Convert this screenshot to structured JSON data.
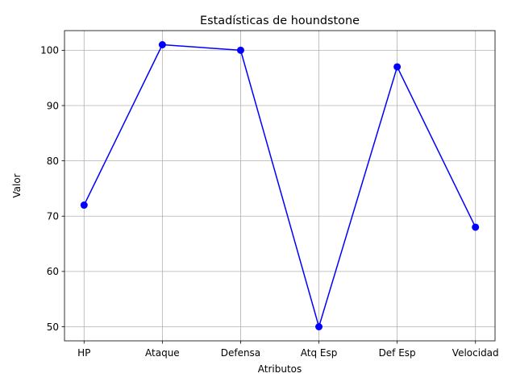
{
  "chart_data": {
    "type": "line",
    "title": "Estadísticas de houndstone",
    "xlabel": "Atributos",
    "ylabel": "Valor",
    "categories": [
      "HP",
      "Ataque",
      "Defensa",
      "Atq Esp",
      "Def Esp",
      "Velocidad"
    ],
    "series": [
      {
        "values": [
          72,
          101,
          100,
          50,
          97,
          68
        ],
        "color": "#0000ff",
        "marker": "circle"
      }
    ],
    "ylim": [
      47.45,
      103.55
    ],
    "yticks": [
      50,
      60,
      70,
      80,
      90,
      100
    ],
    "grid": true
  }
}
